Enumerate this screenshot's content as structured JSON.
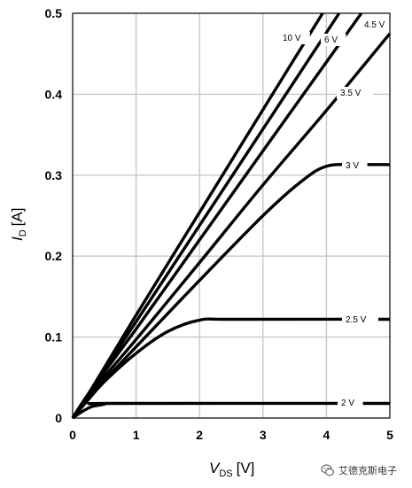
{
  "chart_data": {
    "type": "line",
    "title": "",
    "xlabel": {
      "main": "V",
      "sub": "DS",
      "unit": "[V]"
    },
    "ylabel": {
      "main": "I",
      "sub": "D",
      "unit": "[A]"
    },
    "xlim": [
      0,
      5
    ],
    "ylim": [
      0,
      0.5
    ],
    "xticks": [
      "0",
      "1",
      "2",
      "3",
      "4",
      "5"
    ],
    "yticks": [
      "0",
      "0.1",
      "0.2",
      "0.3",
      "0.4",
      "0.5"
    ],
    "grid": true,
    "series": [
      {
        "name": "10 V",
        "x": [
          0,
          0.25,
          1,
          2,
          3,
          3.94
        ],
        "y": [
          0,
          0.03,
          0.127,
          0.254,
          0.381,
          0.5
        ]
      },
      {
        "name": "6 V",
        "x": [
          0,
          0.25,
          1,
          2,
          3,
          4.2
        ],
        "y": [
          0,
          0.03,
          0.119,
          0.238,
          0.357,
          0.5
        ]
      },
      {
        "name": "4.5 V",
        "x": [
          0,
          0.25,
          1,
          2,
          3,
          4.55
        ],
        "y": [
          0,
          0.03,
          0.11,
          0.22,
          0.33,
          0.5
        ]
      },
      {
        "name": "3.5 V",
        "x": [
          0,
          0.25,
          1,
          2,
          3,
          4,
          5
        ],
        "y": [
          0,
          0.028,
          0.097,
          0.192,
          0.288,
          0.38,
          0.475
        ]
      },
      {
        "name": "3 V",
        "x": [
          0,
          0.25,
          1,
          2,
          3,
          3.6,
          4,
          4.5,
          5
        ],
        "y": [
          0,
          0.025,
          0.088,
          0.17,
          0.25,
          0.292,
          0.311,
          0.313,
          0.313
        ]
      },
      {
        "name": "2.5 V",
        "x": [
          0,
          0.25,
          0.5,
          1,
          1.5,
          2,
          2.5,
          5
        ],
        "y": [
          0,
          0.023,
          0.045,
          0.08,
          0.107,
          0.121,
          0.122,
          0.122
        ]
      },
      {
        "name": "2 V",
        "x": [
          0,
          0.15,
          0.3,
          0.5,
          0.6,
          5
        ],
        "y": [
          0,
          0.008,
          0.014,
          0.017,
          0.018,
          0.018
        ]
      }
    ],
    "labels": [
      {
        "text": "10 V",
        "series": "10 V"
      },
      {
        "text": "6 V",
        "series": "6 V"
      },
      {
        "text": "4.5 V",
        "series": "4.5 V"
      },
      {
        "text": "3.5 V",
        "series": "3.5 V"
      },
      {
        "text": "3 V",
        "series": "3 V"
      },
      {
        "text": "2.5 V",
        "series": "2.5 V"
      },
      {
        "text": "2 V",
        "series": "2 V"
      }
    ]
  },
  "watermark": {
    "text": "艾德克斯电子",
    "icon": "wechat-icon"
  }
}
